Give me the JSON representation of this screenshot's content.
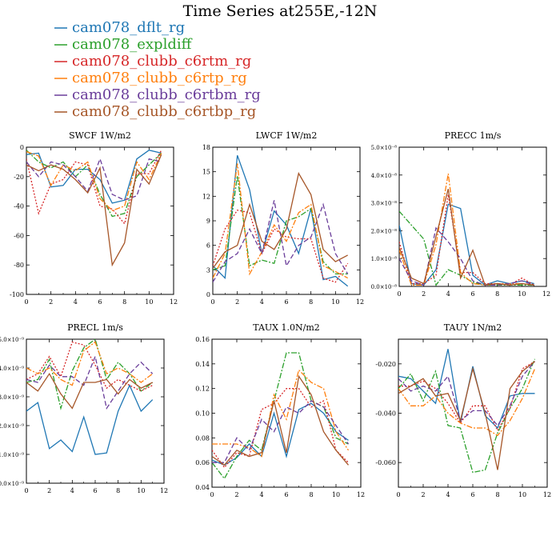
{
  "title": "Time Series at255E,-12N",
  "series_style": [
    {
      "name": "cam078_dflt_rg",
      "color": "#1f77b4",
      "dash": "solid"
    },
    {
      "name": "cam078_expldiff",
      "color": "#2ca02c",
      "dash": "dashdot"
    },
    {
      "name": "cam078_clubb_c6rtm_rg",
      "color": "#d62728",
      "dash": "dotted"
    },
    {
      "name": "cam078_clubb_c6rtp_rg",
      "color": "#ff7f0e",
      "dash": "dashdot"
    },
    {
      "name": "cam078_clubb_c6rtbm_rg",
      "color": "#6a3d9a",
      "dash": "dashed"
    },
    {
      "name": "cam078_clubb_c6rtbp_rg",
      "color": "#a65628",
      "dash": "solid"
    }
  ],
  "chart_data": [
    {
      "type": "line",
      "title": "SWCF   1W/m2",
      "x": [
        0,
        1,
        2,
        3,
        4,
        5,
        6,
        7,
        8,
        9,
        10,
        11
      ],
      "xlim": [
        0,
        12
      ],
      "xticks": [
        "0",
        "2",
        "4",
        "6",
        "8",
        "10",
        "12"
      ],
      "xtick_values": [
        0,
        2,
        4,
        6,
        8,
        10,
        12
      ],
      "ylim": [
        -100,
        0
      ],
      "yticks": [
        "0",
        "-20",
        "-40",
        "-60",
        "-80",
        "-100"
      ],
      "ytick_values": [
        0,
        -20,
        -40,
        -60,
        -80,
        -100
      ],
      "series": [
        {
          "name": "cam078_dflt_rg",
          "values": [
            -5,
            -4,
            -27,
            -26,
            -15,
            -15,
            -22,
            -38,
            -36,
            -8,
            -2,
            -4
          ]
        },
        {
          "name": "cam078_expldiff",
          "values": [
            -2,
            -10,
            -14,
            -10,
            -20,
            -12,
            -32,
            -47,
            -45,
            -20,
            -12,
            -4
          ]
        },
        {
          "name": "cam078_clubb_c6rtm_rg",
          "values": [
            -8,
            -45,
            -25,
            -22,
            -10,
            -12,
            -40,
            -42,
            -52,
            -18,
            -18,
            -2
          ]
        },
        {
          "name": "cam078_clubb_c6rtp_rg",
          "values": [
            -3,
            -6,
            -26,
            -12,
            -16,
            -10,
            -35,
            -43,
            -40,
            -10,
            -22,
            -4
          ]
        },
        {
          "name": "cam078_clubb_c6rtbm_rg",
          "values": [
            -10,
            -20,
            -10,
            -12,
            -20,
            -30,
            -8,
            -32,
            -36,
            -33,
            -8,
            -10
          ]
        },
        {
          "name": "cam078_clubb_c6rtbp_rg",
          "values": [
            -12,
            -16,
            -12,
            -15,
            -22,
            -31,
            -14,
            -80,
            -65,
            -15,
            -25,
            -5
          ]
        }
      ]
    },
    {
      "type": "line",
      "title": "LWCF   1W/m2",
      "x": [
        0,
        1,
        2,
        3,
        4,
        5,
        6,
        7,
        8,
        9,
        10,
        11
      ],
      "xlim": [
        0,
        12
      ],
      "xticks": [
        "0",
        "2",
        "4",
        "6",
        "8",
        "10",
        "12"
      ],
      "xtick_values": [
        0,
        2,
        4,
        6,
        8,
        10,
        12
      ],
      "ylim": [
        0,
        18
      ],
      "yticks": [
        "0",
        "3",
        "6",
        "9",
        "12",
        "15",
        "18"
      ],
      "ytick_values": [
        0,
        3,
        6,
        9,
        12,
        15,
        18
      ],
      "series": [
        {
          "name": "cam078_dflt_rg",
          "values": [
            3.5,
            2,
            17,
            12.8,
            5,
            10.2,
            8.5,
            5,
            10.5,
            1.8,
            2.2,
            1
          ]
        },
        {
          "name": "cam078_expldiff",
          "values": [
            3,
            3.5,
            14.5,
            3.5,
            4.2,
            3.8,
            9,
            9.5,
            10.5,
            4,
            2.5,
            2.5
          ]
        },
        {
          "name": "cam078_clubb_c6rtm_rg",
          "values": [
            3.5,
            8,
            10.3,
            10,
            5,
            8,
            7,
            6.8,
            6.8,
            2,
            1.5,
            3.8
          ]
        },
        {
          "name": "cam078_clubb_c6rtp_rg",
          "values": [
            2,
            5,
            16,
            2.5,
            5.2,
            8.5,
            6.5,
            10,
            11,
            3.5,
            2.8,
            2
          ]
        },
        {
          "name": "cam078_clubb_c6rtbm_rg",
          "values": [
            1.5,
            4,
            5,
            8,
            5,
            11.5,
            3.5,
            6,
            7,
            11,
            5,
            2.5
          ]
        },
        {
          "name": "cam078_clubb_c6rtbp_rg",
          "values": [
            3.2,
            5.2,
            6,
            11,
            6.5,
            5.5,
            8,
            14.8,
            12.2,
            5.5,
            4,
            4.8
          ]
        }
      ]
    },
    {
      "type": "line",
      "title": "PRECC   1m/s",
      "x": [
        0,
        1,
        2,
        3,
        4,
        5,
        6,
        7,
        8,
        9,
        10,
        11
      ],
      "xlim": [
        0,
        12
      ],
      "xticks": [
        "0",
        "2",
        "4",
        "6",
        "8",
        "10",
        "12"
      ],
      "xtick_values": [
        0,
        2,
        4,
        6,
        8,
        10,
        12
      ],
      "ylim": [
        0,
        5
      ],
      "yticks": [
        "0.0×10⁻⁸",
        "1.0×10⁻⁸",
        "2.0×10⁻⁸",
        "3.0×10⁻⁸",
        "4.0×10⁻⁸",
        "5.0×10⁻⁸"
      ],
      "ytick_values": [
        0,
        1,
        2,
        3,
        4,
        5
      ],
      "series": [
        {
          "name": "cam078_dflt_rg",
          "values": [
            2.2,
            0.1,
            0.05,
            0.6,
            2.95,
            2.8,
            0.4,
            0.05,
            0.2,
            0.1,
            0.2,
            0.1
          ]
        },
        {
          "name": "cam078_expldiff",
          "values": [
            2.7,
            2.2,
            1.7,
            0.05,
            0.6,
            0.4,
            0.15,
            0.05,
            0.05,
            0.05,
            0.05,
            0.05
          ]
        },
        {
          "name": "cam078_clubb_c6rtm_rg",
          "values": [
            1.6,
            0.1,
            0.1,
            0.4,
            3.3,
            0.5,
            0.5,
            0.1,
            0.1,
            0.05,
            0.3,
            0.05
          ]
        },
        {
          "name": "cam078_clubb_c6rtp_rg",
          "values": [
            1.3,
            0.05,
            0.05,
            1.5,
            4.05,
            0.5,
            0.1,
            0.05,
            0.1,
            0.1,
            0.1,
            0.05
          ]
        },
        {
          "name": "cam078_clubb_c6rtbm_rg",
          "values": [
            1.0,
            0.2,
            0.05,
            2.1,
            1.6,
            1.0,
            0.2,
            0.05,
            0.05,
            0.1,
            0.2,
            0.05
          ]
        },
        {
          "name": "cam078_clubb_c6rtbp_rg",
          "values": [
            1.4,
            0.3,
            0.1,
            1.8,
            3.5,
            0.3,
            1.3,
            0.05,
            0.1,
            0.05,
            0.1,
            0.05
          ]
        }
      ]
    },
    {
      "type": "line",
      "title": "PRECL   1m/s",
      "x": [
        0,
        1,
        2,
        3,
        4,
        5,
        6,
        7,
        8,
        9,
        10,
        11
      ],
      "xlim": [
        0,
        12
      ],
      "xticks": [
        "0",
        "2",
        "4",
        "6",
        "8",
        "10",
        "12"
      ],
      "xtick_values": [
        0,
        2,
        4,
        6,
        8,
        10,
        12
      ],
      "ylim": [
        0,
        5
      ],
      "yticks": [
        "0.0×10⁻⁹",
        "1.0×10⁻⁹",
        "2.0×10⁻⁹",
        "3.0×10⁻⁹",
        "4.0×10⁻⁹",
        "5.0×10⁻⁹"
      ],
      "ytick_values": [
        0,
        1,
        2,
        3,
        4,
        5
      ],
      "series": [
        {
          "name": "cam078_dflt_rg",
          "values": [
            2.5,
            2.8,
            1.2,
            1.5,
            1.1,
            2.3,
            1.0,
            1.05,
            2.5,
            3.4,
            2.5,
            2.9
          ]
        },
        {
          "name": "cam078_expldiff",
          "values": [
            3.5,
            3.6,
            4.3,
            2.6,
            3.9,
            4.7,
            5.0,
            3.6,
            4.2,
            3.8,
            3.2,
            3.5
          ]
        },
        {
          "name": "cam078_clubb_c6rtm_rg",
          "values": [
            3.6,
            3.8,
            4.4,
            3.7,
            4.9,
            4.8,
            4.1,
            3.3,
            3.6,
            3.4,
            3.2,
            3.4
          ]
        },
        {
          "name": "cam078_clubb_c6rtp_rg",
          "values": [
            4.0,
            3.8,
            4.0,
            3.6,
            3.4,
            4.6,
            4.9,
            3.8,
            4.0,
            3.8,
            3.5,
            3.8
          ]
        },
        {
          "name": "cam078_clubb_c6rtbm_rg",
          "values": [
            3.6,
            3.5,
            4.1,
            3.7,
            3.7,
            3.4,
            4.4,
            2.6,
            3.2,
            3.8,
            4.2,
            3.8
          ]
        },
        {
          "name": "cam078_clubb_c6rtbp_rg",
          "values": [
            3.5,
            3.2,
            3.8,
            3.1,
            2.6,
            3.5,
            3.5,
            3.6,
            3.1,
            3.6,
            3.3,
            3.5
          ]
        }
      ]
    },
    {
      "type": "line",
      "title": "TAUX   1.0N/m2",
      "x": [
        0,
        1,
        2,
        3,
        4,
        5,
        6,
        7,
        8,
        9,
        10,
        11
      ],
      "xlim": [
        0,
        12
      ],
      "xticks": [
        "0",
        "2",
        "4",
        "6",
        "8",
        "10",
        "12"
      ],
      "xtick_values": [
        0,
        2,
        4,
        6,
        8,
        10,
        12
      ],
      "ylim": [
        0.04,
        0.16
      ],
      "yticks": [
        "0.04",
        "0.06",
        "0.08",
        "0.10",
        "0.12",
        "0.14",
        "0.16"
      ],
      "ytick_values": [
        0.04,
        0.06,
        0.08,
        0.1,
        0.12,
        0.14,
        0.16
      ],
      "series": [
        {
          "name": "cam078_dflt_rg",
          "values": [
            0.062,
            0.058,
            0.064,
            0.075,
            0.065,
            0.1,
            0.065,
            0.103,
            0.108,
            0.1,
            0.085,
            0.078
          ]
        },
        {
          "name": "cam078_expldiff",
          "values": [
            0.06,
            0.047,
            0.065,
            0.078,
            0.07,
            0.11,
            0.149,
            0.149,
            0.11,
            0.105,
            0.08,
            0.075
          ]
        },
        {
          "name": "cam078_clubb_c6rtm_rg",
          "values": [
            0.07,
            0.056,
            0.068,
            0.065,
            0.103,
            0.108,
            0.12,
            0.12,
            0.105,
            0.11,
            0.07,
            0.06
          ]
        },
        {
          "name": "cam078_clubb_c6rtp_rg",
          "values": [
            0.075,
            0.075,
            0.075,
            0.072,
            0.065,
            0.115,
            0.095,
            0.135,
            0.125,
            0.12,
            0.085,
            0.07
          ]
        },
        {
          "name": "cam078_clubb_c6rtbm_rg",
          "values": [
            0.06,
            0.06,
            0.08,
            0.07,
            0.095,
            0.085,
            0.105,
            0.1,
            0.11,
            0.105,
            0.09,
            0.075
          ]
        },
        {
          "name": "cam078_clubb_c6rtbp_rg",
          "values": [
            0.065,
            0.058,
            0.07,
            0.065,
            0.068,
            0.11,
            0.068,
            0.13,
            0.115,
            0.085,
            0.07,
            0.058
          ]
        }
      ]
    },
    {
      "type": "line",
      "title": "TAUY   1N/m2",
      "x": [
        0,
        1,
        2,
        3,
        4,
        5,
        6,
        7,
        8,
        9,
        10,
        11
      ],
      "xlim": [
        0,
        12
      ],
      "xticks": [
        "0",
        "2",
        "4",
        "6",
        "8",
        "10",
        "12"
      ],
      "xtick_values": [
        0,
        2,
        4,
        6,
        8,
        10,
        12
      ],
      "ylim": [
        -0.07,
        -0.01
      ],
      "yticks": [
        "-0.020",
        "-0.040",
        "-0.060"
      ],
      "ytick_values": [
        -0.02,
        -0.04,
        -0.06
      ],
      "series": [
        {
          "name": "cam078_dflt_rg",
          "values": [
            -0.025,
            -0.026,
            -0.031,
            -0.036,
            -0.014,
            -0.044,
            -0.021,
            -0.041,
            -0.046,
            -0.033,
            -0.032,
            -0.032
          ]
        },
        {
          "name": "cam078_expldiff",
          "values": [
            -0.03,
            -0.024,
            -0.035,
            -0.023,
            -0.045,
            -0.046,
            -0.064,
            -0.063,
            -0.048,
            -0.038,
            -0.03,
            -0.018
          ]
        },
        {
          "name": "cam078_clubb_c6rtm_rg",
          "values": [
            -0.029,
            -0.029,
            -0.027,
            -0.03,
            -0.036,
            -0.044,
            -0.037,
            -0.037,
            -0.047,
            -0.038,
            -0.022,
            -0.019
          ]
        },
        {
          "name": "cam078_clubb_c6rtp_rg",
          "values": [
            -0.03,
            -0.037,
            -0.037,
            -0.033,
            -0.04,
            -0.044,
            -0.046,
            -0.046,
            -0.049,
            -0.043,
            -0.034,
            -0.022
          ]
        },
        {
          "name": "cam078_clubb_c6rtbm_rg",
          "values": [
            -0.026,
            -0.031,
            -0.029,
            -0.031,
            -0.025,
            -0.043,
            -0.039,
            -0.039,
            -0.045,
            -0.037,
            -0.025,
            -0.019
          ]
        },
        {
          "name": "cam078_clubb_c6rtbp_rg",
          "values": [
            -0.032,
            -0.029,
            -0.026,
            -0.033,
            -0.032,
            -0.043,
            -0.022,
            -0.04,
            -0.063,
            -0.03,
            -0.023,
            -0.019
          ]
        }
      ]
    }
  ]
}
